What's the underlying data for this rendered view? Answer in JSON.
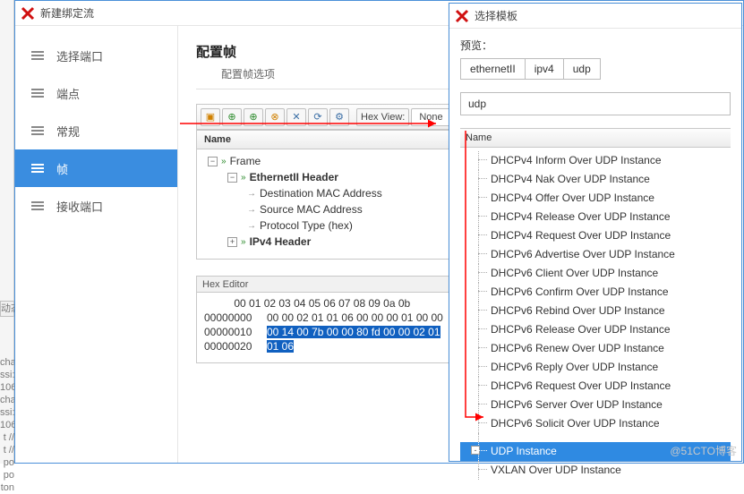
{
  "leftCrop": {
    "lines": [
      "",
      "",
      "",
      "",
      "cha",
      "ssi",
      "10",
      "cha",
      "ssi",
      "10",
      "t//",
      "t//",
      "po",
      "po",
      "ton"
    ],
    "dynBtn": "动态"
  },
  "mainWindow": {
    "title": "新建绑定流",
    "sidebar": [
      {
        "label": "选择端口",
        "active": false
      },
      {
        "label": "端点",
        "active": false
      },
      {
        "label": "常规",
        "active": false
      },
      {
        "label": "帧",
        "active": true
      },
      {
        "label": "接收端口",
        "active": false
      }
    ],
    "config": {
      "title": "配置帧",
      "sub": "配置帧选项"
    },
    "toolbar": {
      "hexViewLabel": "Hex View:",
      "hexViewValue": "None",
      "buttons": [
        "▣",
        "⊕",
        "⊕",
        "⊗",
        "✕",
        "⟳",
        "⚙"
      ],
      "btnColors": [
        "o",
        "g",
        "g",
        "o",
        "b",
        "b",
        "b"
      ]
    },
    "tree": {
      "header": "Name",
      "root": "Frame",
      "nodes": [
        {
          "label": "EthernetII Header",
          "bold": true,
          "children": [
            "Destination MAC Address",
            "Source MAC Address",
            "Protocol Type (hex)"
          ]
        },
        {
          "label": "IPv4 Header",
          "bold": true,
          "children": []
        }
      ]
    },
    "hexEditor": {
      "title": "Hex Editor",
      "offsets": "          00 01 02 03 04 05 06 07 08 09 0a 0b",
      "rows": [
        {
          "addr": "00000000",
          "plain": "00 00 02 01 01 06 00 00 00 01 00 00",
          "sel": ""
        },
        {
          "addr": "00000010",
          "plain": "",
          "sel": "00 14 00 7b 00 00 80 fd 00 00 02 01"
        },
        {
          "addr": "00000020",
          "plain": "",
          "sel": "01 06"
        }
      ]
    }
  },
  "dialog": {
    "title": "选择模板",
    "previewLabel": "预览：",
    "chips": [
      "ethernetII",
      "ipv4",
      "udp"
    ],
    "search": "udp",
    "nameHeader": "Name",
    "group1": [
      "DHCPv4 Inform Over UDP Instance",
      "DHCPv4 Nak Over UDP Instance",
      "DHCPv4 Offer Over UDP Instance",
      "DHCPv4 Release Over UDP Instance",
      "DHCPv4 Request Over UDP Instance",
      "DHCPv6 Advertise Over UDP Instance",
      "DHCPv6 Client Over UDP Instance",
      "DHCPv6 Confirm Over UDP Instance",
      "DHCPv6 Rebind Over UDP Instance",
      "DHCPv6 Release Over UDP Instance",
      "DHCPv6 Renew Over UDP Instance",
      "DHCPv6 Reply Over UDP Instance",
      "DHCPv6 Request Over UDP Instance",
      "DHCPv6 Server Over UDP Instance",
      "DHCPv6 Solicit Over UDP Instance"
    ],
    "group2": [
      {
        "label": "UDP Instance",
        "selected": true
      },
      {
        "label": "VXLAN Over UDP Instance",
        "selected": false
      }
    ]
  },
  "watermark": "@51CTO博客",
  "colors": {
    "accent": "#3a8de0",
    "arrow": "#ff0000",
    "hexSelBg": "#1060c0"
  }
}
